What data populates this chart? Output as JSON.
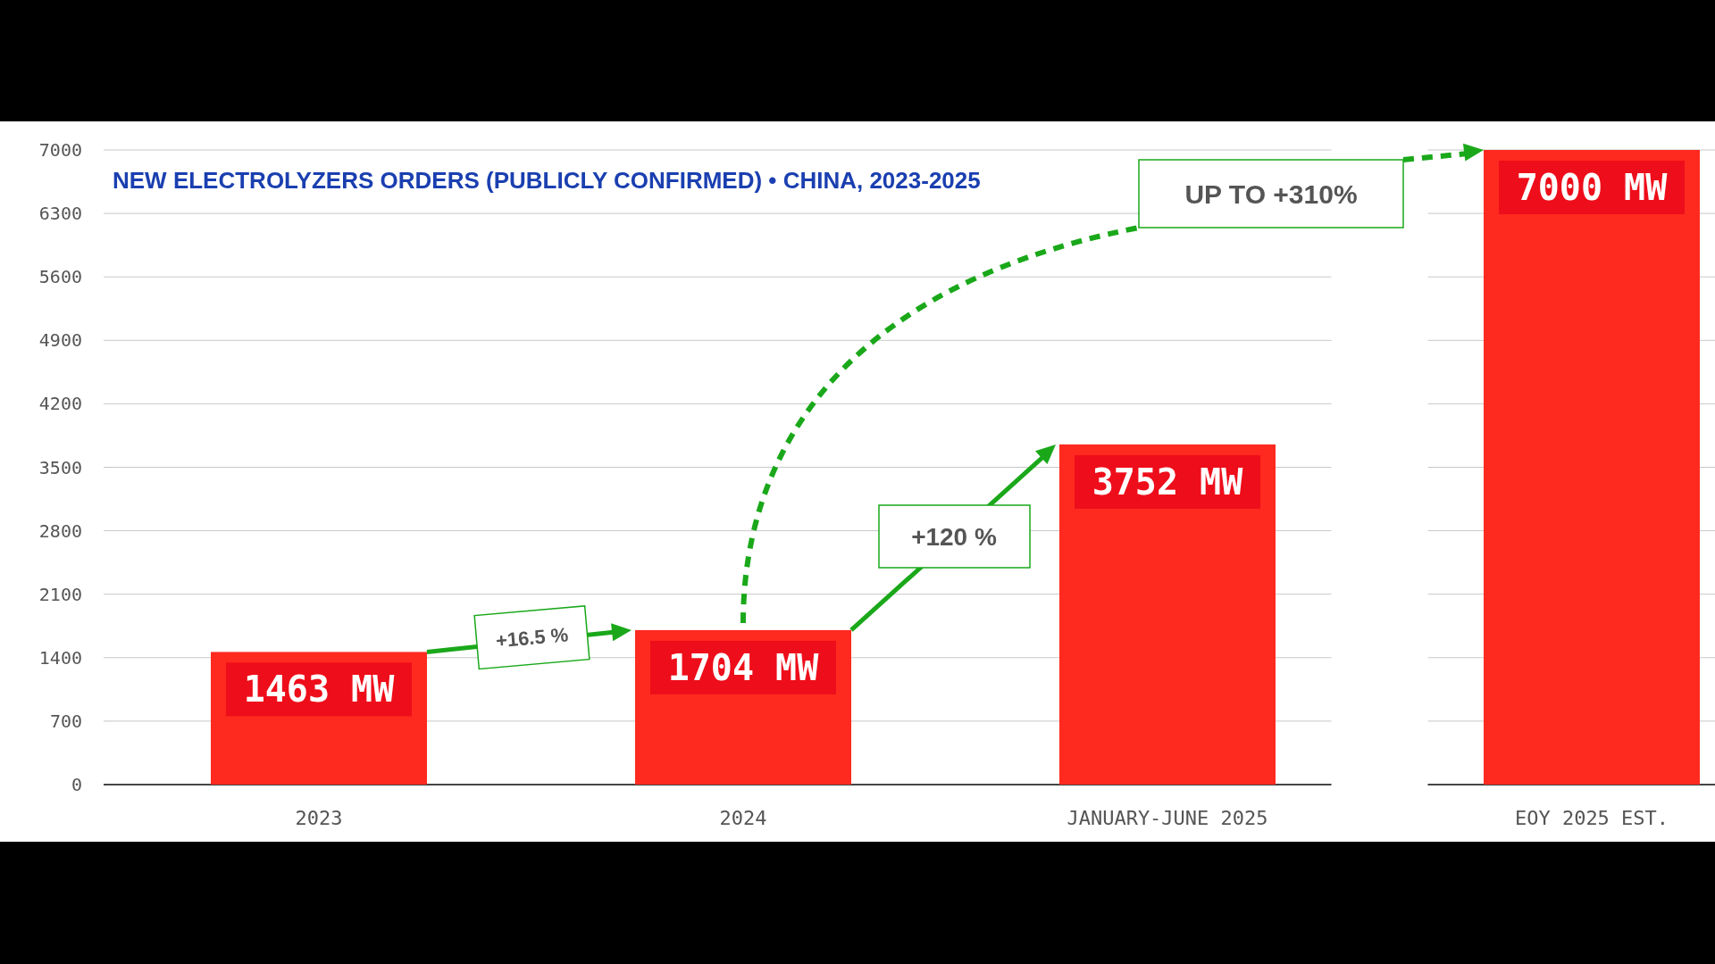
{
  "chart_data": {
    "type": "bar",
    "title": "NEW ELECTROLYZERS ORDERS (PUBLICLY CONFIRMED) • CHINA, 2023-2025",
    "categories": [
      "2023",
      "2024",
      "JANUARY-JUNE 2025",
      "EOY 2025 EST."
    ],
    "values": [
      1463,
      1704,
      3752,
      7000
    ],
    "value_labels": [
      "1463 MW",
      "1704 MW",
      "3752 MW",
      "7000 MW"
    ],
    "color": "#ff2a1f",
    "ylim": [
      0,
      7000
    ],
    "yticks": [
      0,
      700,
      1400,
      2100,
      2800,
      3500,
      4200,
      4900,
      5600,
      6300,
      7000
    ],
    "grid": "y",
    "annotations": [
      "+16.5 %",
      "+120 %",
      "UP TO +310%"
    ]
  }
}
